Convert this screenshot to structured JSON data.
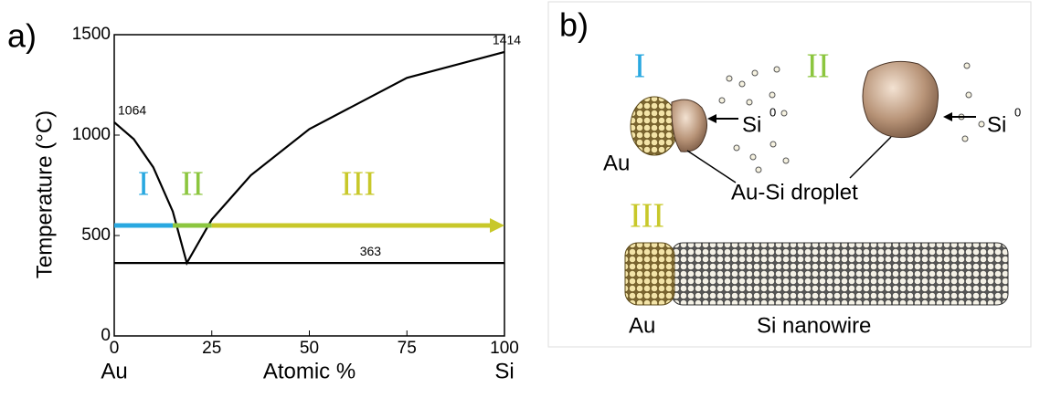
{
  "panels": [
    "a)",
    "b)"
  ],
  "chart_data": {
    "type": "line",
    "xlabel": "Atomic %",
    "ylabel": "Temperature (°C)",
    "x_end_labels": [
      "Au",
      "Si"
    ],
    "xlim": [
      0,
      100
    ],
    "ylim": [
      0,
      1500
    ],
    "xticks": [
      0,
      25,
      50,
      75,
      100
    ],
    "yticks": [
      0,
      500,
      1000,
      1500
    ],
    "series": [
      {
        "color": "#000000",
        "x": [
          0,
          5,
          10,
          15,
          18.6,
          25,
          35,
          50,
          75,
          100
        ],
        "values": [
          1064,
          980,
          840,
          620,
          363,
          580,
          800,
          1030,
          1285,
          1414
        ]
      },
      {
        "color": "#000000",
        "x": [
          0,
          100
        ],
        "values": [
          363,
          363
        ]
      }
    ],
    "regions": [
      {
        "label": "I",
        "color": "#29a8e0",
        "x": [
          0,
          15
        ],
        "y": 550
      },
      {
        "label": "II",
        "color": "#8cc63f",
        "x": [
          15,
          25
        ],
        "y": 550
      },
      {
        "label": "III",
        "color": "#c8c82a",
        "x": [
          25,
          100
        ],
        "y": 550
      }
    ],
    "annotations": [
      {
        "text": "1064",
        "x": 0,
        "y": 1064
      },
      {
        "text": "1414",
        "x": 96,
        "y": 1414
      },
      {
        "text": "363",
        "x": 62,
        "y": 363
      }
    ]
  },
  "diagram": {
    "stage_labels": [
      "I",
      "II",
      "III"
    ],
    "labels": {
      "au_1": "Au",
      "si_1": "Si",
      "si_sup_1": "0",
      "si_2": "Si",
      "si_sup_2": "0",
      "droplet": "Au-Si droplet",
      "au_2": "Au",
      "nanowire": "Si nanowire"
    }
  }
}
